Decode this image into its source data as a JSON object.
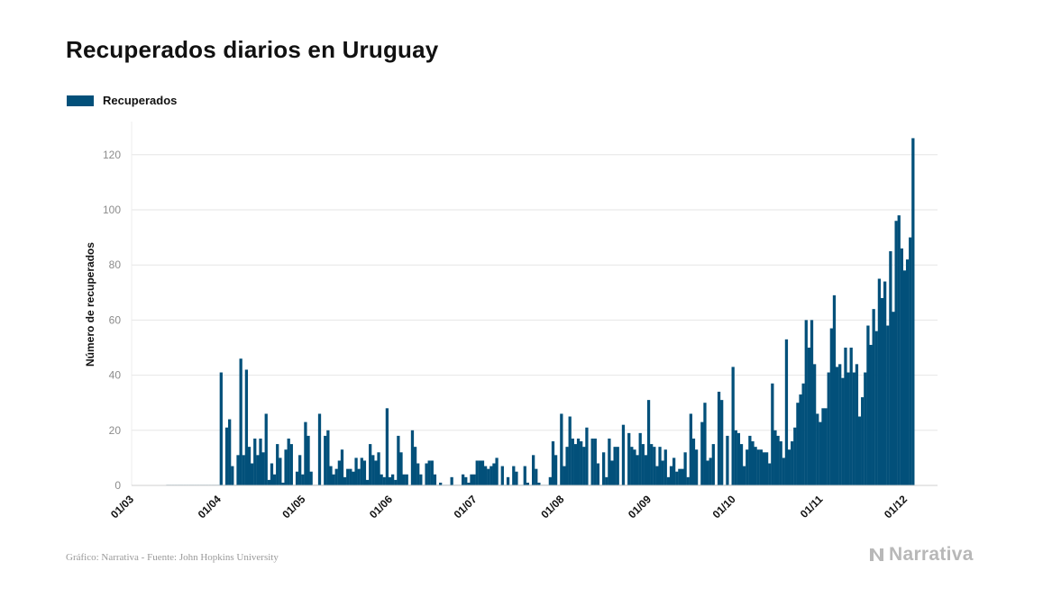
{
  "chart_data": {
    "type": "bar",
    "title": "Recuperados diarios en Uruguay",
    "ylabel": "Número de recuperados",
    "xlabel": "",
    "ylim": [
      0,
      130
    ],
    "y_ticks": [
      0,
      20,
      40,
      60,
      80,
      100,
      120
    ],
    "x_tick_labels": [
      "01/03",
      "01/04",
      "01/05",
      "01/06",
      "01/07",
      "01/08",
      "01/09",
      "01/10",
      "01/11",
      "01/12"
    ],
    "grid": "horizontal",
    "legend_position": "top-left",
    "series": [
      {
        "name": "Recuperados",
        "color": "#02507a",
        "start_date": "2020-03-13",
        "values": [
          0,
          0,
          0,
          0,
          0,
          0,
          0,
          0,
          0,
          0,
          0,
          0,
          0,
          0,
          0,
          0,
          0,
          0,
          0,
          41,
          0,
          21,
          24,
          7,
          0,
          11,
          46,
          11,
          42,
          14,
          8,
          17,
          11,
          17,
          12,
          26,
          2,
          8,
          4,
          15,
          10,
          1,
          13,
          17,
          15,
          0,
          5,
          11,
          4,
          23,
          18,
          5,
          0,
          0,
          26,
          0,
          18,
          20,
          7,
          4,
          6,
          9,
          13,
          3,
          6,
          6,
          5,
          10,
          6,
          10,
          9,
          2,
          15,
          11,
          9,
          12,
          4,
          3,
          28,
          3,
          4,
          2,
          18,
          12,
          4,
          4,
          0,
          20,
          14,
          8,
          4,
          0,
          8,
          9,
          9,
          4,
          0,
          1,
          0,
          0,
          0,
          3,
          0,
          0,
          0,
          4,
          3,
          1,
          4,
          4,
          9,
          9,
          9,
          7,
          6,
          7,
          8,
          10,
          0,
          7,
          0,
          3,
          0,
          7,
          5,
          0,
          0,
          7,
          1,
          0,
          11,
          6,
          1,
          0,
          0,
          0,
          3,
          16,
          11,
          0,
          26,
          7,
          14,
          25,
          17,
          15,
          17,
          16,
          14,
          21,
          0,
          17,
          17,
          8,
          0,
          12,
          3,
          17,
          9,
          14,
          14,
          0,
          22,
          0,
          19,
          14,
          13,
          11,
          19,
          15,
          11,
          31,
          15,
          14,
          7,
          14,
          9,
          13,
          3,
          7,
          10,
          5,
          6,
          6,
          12,
          3,
          26,
          17,
          13,
          0,
          23,
          30,
          9,
          10,
          15,
          0,
          34,
          31,
          0,
          18,
          0,
          43,
          20,
          19,
          15,
          7,
          13,
          18,
          16,
          14,
          13,
          13,
          12,
          12,
          8,
          37,
          20,
          18,
          16,
          10,
          53,
          13,
          16,
          21,
          30,
          33,
          37,
          60,
          50,
          60,
          44,
          26,
          23,
          28,
          28,
          41,
          57,
          69,
          43,
          44,
          39,
          50,
          41,
          50,
          41,
          44,
          25,
          32,
          41,
          58,
          51,
          64,
          56,
          75,
          68,
          74,
          58,
          85,
          63,
          96,
          98,
          86,
          78,
          82,
          90,
          126
        ]
      }
    ]
  },
  "legend": {
    "label": "Recuperados"
  },
  "footer": {
    "source": "Gráfico: Narrativa - Fuente: John Hopkins University",
    "brand": "Narrativa"
  },
  "colors": {
    "bar": "#02507a",
    "grid": "#e6e6e6",
    "tick": "#8c8c8c",
    "brand": "#b8b8b8"
  },
  "icons": {
    "brand": "narrativa-logo-icon"
  }
}
